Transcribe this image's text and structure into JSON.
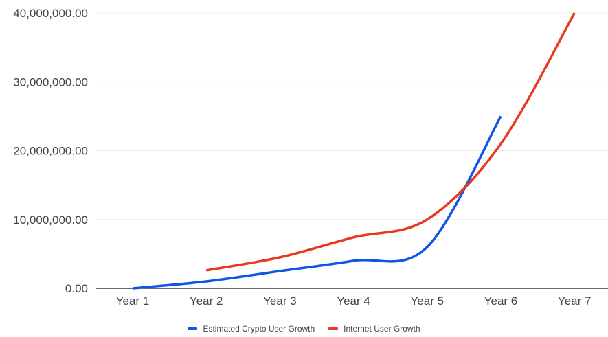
{
  "chart_data": {
    "type": "line",
    "title": "",
    "xlabel": "",
    "ylabel": "",
    "categories": [
      "Year 1",
      "Year 2",
      "Year 3",
      "Year 4",
      "Year 5",
      "Year 6",
      "Year 7"
    ],
    "ylim": [
      0,
      40000000
    ],
    "yticks": [
      0,
      10000000,
      20000000,
      30000000,
      40000000
    ],
    "ytick_labels": [
      "0.00",
      "10,000,000.00",
      "20,000,000.00",
      "30,000,000.00",
      "40,000,000.00"
    ],
    "grid": true,
    "legend_position": "bottom",
    "smooth": true,
    "series": [
      {
        "name": "Estimated Crypto User Growth",
        "color": "#1155e6",
        "values": [
          0,
          1000000,
          2500000,
          4000000,
          6000000,
          25000000,
          null
        ]
      },
      {
        "name": "Internet User Growth",
        "color": "#e8391f",
        "values": [
          null,
          2600000,
          4500000,
          7400000,
          10000000,
          21000000,
          40000000
        ]
      }
    ]
  }
}
